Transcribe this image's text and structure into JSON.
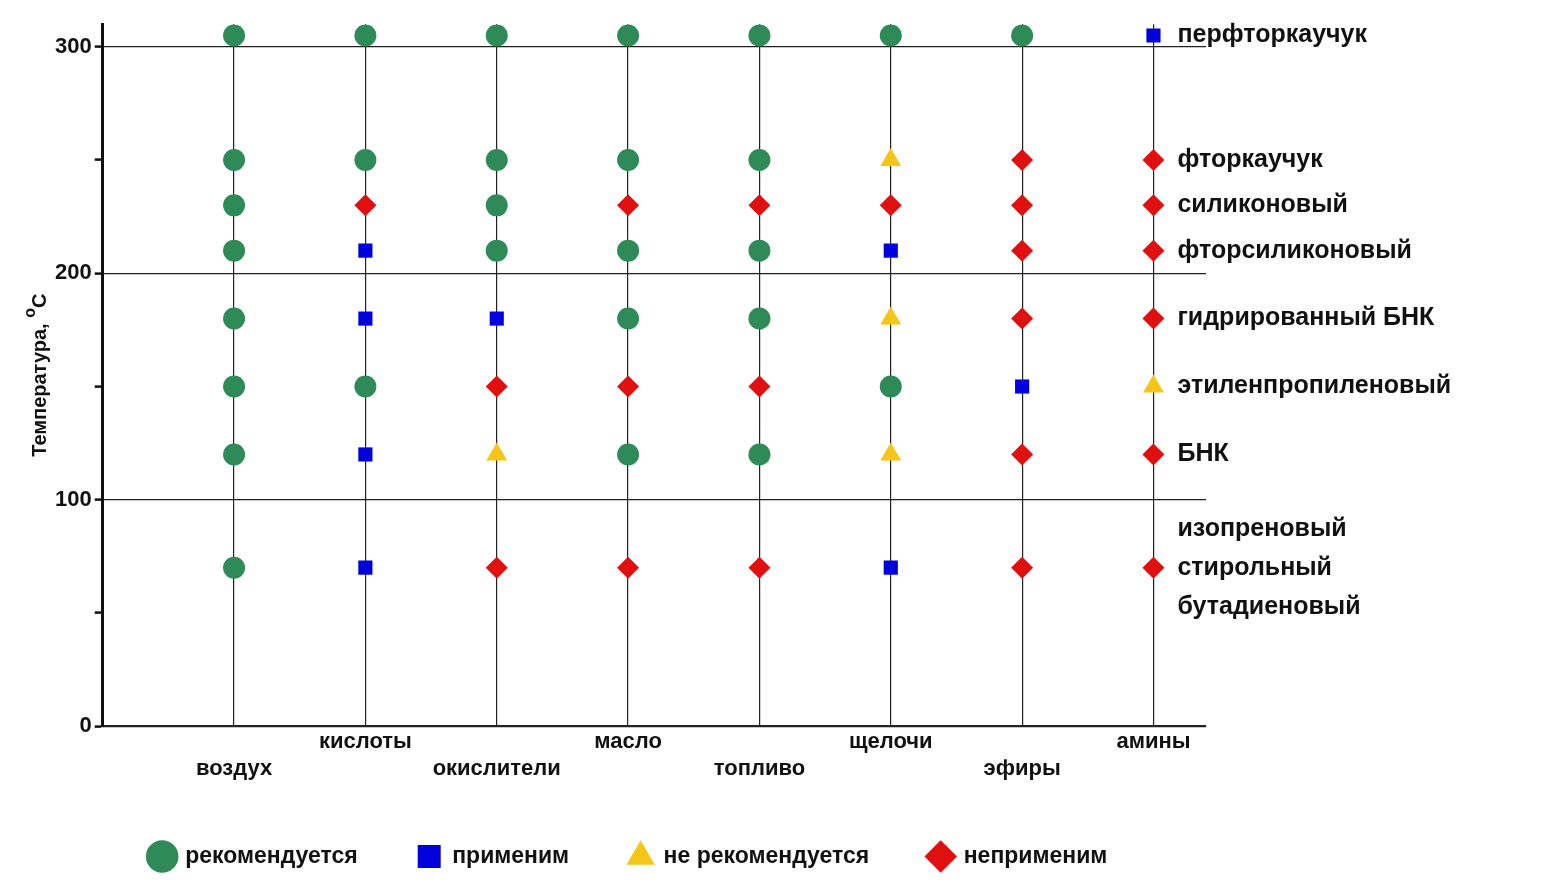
{
  "chart_data": {
    "type": "scatter",
    "ylabel": "Температура, $^{o}$C",
    "categories": [
      "воздух",
      "кислоты",
      "окислители",
      "масло",
      "топливо",
      "щелочи",
      "эфиры",
      "амины"
    ],
    "ylim": [
      0,
      310
    ],
    "yticks": [
      0,
      {
        "value": 50,
        "label": null
      },
      100,
      {
        "value": 150,
        "label": null
      },
      200,
      {
        "value": 250,
        "label": null
      },
      300
    ],
    "grid": true,
    "legend": "bottom",
    "series": [
      {
        "name": "рекомендуется",
        "color": "#2e8b57",
        "marker": "circle",
        "x": [
          "воздух",
          "воздух",
          "воздух",
          "воздух",
          "воздух",
          "воздух",
          "воздух",
          "воздух",
          "кислоты",
          "кислоты",
          "кислоты",
          "окислители",
          "окислители",
          "окислители",
          "окислители",
          "масло",
          "масло",
          "масло",
          "масло",
          "масло",
          "топливо",
          "топливо",
          "топливо",
          "топливо",
          "топливо",
          "щелочи",
          "щелочи",
          "эфиры"
        ],
        "values": [
          305,
          250,
          230,
          210,
          180,
          150,
          120,
          70,
          305,
          250,
          150,
          305,
          250,
          230,
          210,
          305,
          250,
          210,
          180,
          120,
          305,
          250,
          210,
          180,
          120,
          305,
          150,
          305
        ]
      },
      {
        "name": "применим",
        "color": "#0000dd",
        "marker": "square",
        "x": [
          "кислоты",
          "кислоты",
          "кислоты",
          "кислоты",
          "окислители",
          "щелочи",
          "щелочи",
          "эфиры",
          "амины"
        ],
        "values": [
          210,
          180,
          120,
          70,
          180,
          210,
          70,
          150,
          305
        ]
      },
      {
        "name": "не рекомендуется",
        "color": "#f5c518",
        "marker": "triangle",
        "x": [
          "окислители",
          "щелочи",
          "щелочи",
          "щелочи",
          "амины"
        ],
        "values": [
          120,
          250,
          180,
          120,
          150
        ]
      },
      {
        "name": "неприменим",
        "color": "#e01010",
        "marker": "diamond",
        "x": [
          "кислоты",
          "окислители",
          "окислители",
          "масло",
          "масло",
          "масло",
          "топливо",
          "топливо",
          "топливо",
          "щелочи",
          "эфиры",
          "эфиры",
          "эфиры",
          "эфиры",
          "эфиры",
          "эфиры",
          "амины",
          "амины",
          "амины",
          "амины",
          "амины",
          "амины"
        ],
        "values": [
          230,
          150,
          70,
          230,
          150,
          70,
          230,
          150,
          70,
          230,
          250,
          230,
          210,
          180,
          120,
          70,
          250,
          230,
          210,
          180,
          120,
          70
        ]
      }
    ],
    "annotations": [
      {
        "text": "перфторкаучук",
        "x": "амины",
        "y": 305
      },
      {
        "text": "фторкаучук",
        "x": "амины",
        "y": 250
      },
      {
        "text": "силиконовый",
        "x": "амины",
        "y": 230
      },
      {
        "text": "фторсиликоновый",
        "x": "амины",
        "y": 210
      },
      {
        "text": "гидрированный БНК",
        "x": "амины",
        "y": 180
      },
      {
        "text": "этиленпропиленовый",
        "x": "амины",
        "y": 150
      },
      {
        "text": "БНК",
        "x": "амины",
        "y": 120
      },
      {
        "text": "изопреновый\nстирольный\nбутадиеновый",
        "x": "амины",
        "y": 70
      }
    ]
  }
}
